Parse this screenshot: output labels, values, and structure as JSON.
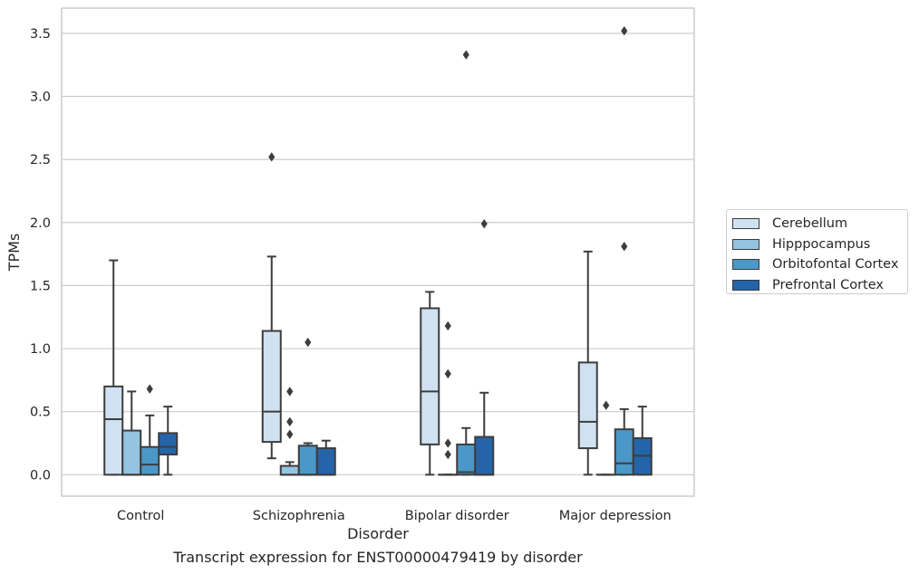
{
  "chart_data": {
    "type": "box",
    "caption": "Transcript expression for ENST00000479419 by disorder",
    "xlabel": "Disorder",
    "ylabel": "TPMs",
    "ylim": [
      -0.17,
      3.7
    ],
    "yticks": [
      0.0,
      0.5,
      1.0,
      1.5,
      2.0,
      2.5,
      3.0,
      3.5
    ],
    "ytick_labels": [
      "0.0",
      "0.5",
      "1.0",
      "1.5",
      "2.0",
      "2.5",
      "3.0",
      "3.5"
    ],
    "grid": "horizontal",
    "legend_position": "right",
    "categories": [
      "Control",
      "Schizophrenia",
      "Bipolar disorder",
      "Major depression"
    ],
    "series": [
      {
        "name": "Cerebellum",
        "color": "#d0e1f2",
        "boxes": [
          {
            "whisker_low": 0.0,
            "q1": 0.0,
            "median": 0.44,
            "q3": 0.7,
            "whisker_high": 1.7,
            "outliers": []
          },
          {
            "whisker_low": 0.13,
            "q1": 0.26,
            "median": 0.5,
            "q3": 1.14,
            "whisker_high": 1.73,
            "outliers": [
              2.52
            ]
          },
          {
            "whisker_low": 0.0,
            "q1": 0.24,
            "median": 0.66,
            "q3": 1.32,
            "whisker_high": 1.45,
            "outliers": []
          },
          {
            "whisker_low": 0.0,
            "q1": 0.21,
            "median": 0.42,
            "q3": 0.89,
            "whisker_high": 1.77,
            "outliers": []
          }
        ]
      },
      {
        "name": "Hipppocampus",
        "color": "#94c4df",
        "boxes": [
          {
            "whisker_low": 0.0,
            "q1": 0.0,
            "median": 0.0,
            "q3": 0.35,
            "whisker_high": 0.66,
            "outliers": []
          },
          {
            "whisker_low": 0.0,
            "q1": 0.0,
            "median": 0.0,
            "q3": 0.07,
            "whisker_high": 0.1,
            "outliers": [
              0.32,
              0.42,
              0.66
            ]
          },
          {
            "whisker_low": 0.0,
            "q1": 0.0,
            "median": 0.0,
            "q3": 0.0,
            "whisker_high": 0.0,
            "outliers": [
              0.16,
              0.25,
              0.8,
              1.18
            ]
          },
          {
            "whisker_low": 0.0,
            "q1": 0.0,
            "median": 0.0,
            "q3": 0.0,
            "whisker_high": 0.0,
            "outliers": [
              0.55
            ]
          }
        ]
      },
      {
        "name": "Orbitofontal Cortex",
        "color": "#4a98c9",
        "boxes": [
          {
            "whisker_low": 0.0,
            "q1": 0.0,
            "median": 0.08,
            "q3": 0.22,
            "whisker_high": 0.47,
            "outliers": [
              0.68
            ]
          },
          {
            "whisker_low": 0.0,
            "q1": 0.0,
            "median": 0.0,
            "q3": 0.23,
            "whisker_high": 0.25,
            "outliers": [
              1.05
            ]
          },
          {
            "whisker_low": 0.0,
            "q1": 0.0,
            "median": 0.02,
            "q3": 0.24,
            "whisker_high": 0.37,
            "outliers": [
              3.33
            ]
          },
          {
            "whisker_low": 0.0,
            "q1": 0.0,
            "median": 0.09,
            "q3": 0.36,
            "whisker_high": 0.52,
            "outliers": [
              1.81,
              3.52
            ]
          }
        ]
      },
      {
        "name": "Prefrontal Cortex",
        "color": "#2464a9",
        "boxes": [
          {
            "whisker_low": 0.0,
            "q1": 0.16,
            "median": 0.22,
            "q3": 0.33,
            "whisker_high": 0.54,
            "outliers": []
          },
          {
            "whisker_low": 0.0,
            "q1": 0.0,
            "median": 0.0,
            "q3": 0.21,
            "whisker_high": 0.27,
            "outliers": []
          },
          {
            "whisker_low": 0.0,
            "q1": 0.0,
            "median": 0.0,
            "q3": 0.3,
            "whisker_high": 0.65,
            "outliers": [
              1.99
            ]
          },
          {
            "whisker_low": 0.0,
            "q1": 0.0,
            "median": 0.15,
            "q3": 0.29,
            "whisker_high": 0.54,
            "outliers": []
          }
        ]
      }
    ]
  }
}
